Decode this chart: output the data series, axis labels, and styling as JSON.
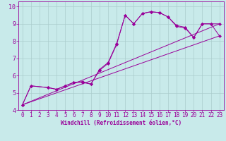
{
  "xlabel": "Windchill (Refroidissement éolien,°C)",
  "bg_color": "#c8eaea",
  "line_color": "#990099",
  "grid_color": "#aacccc",
  "marker": "D",
  "marker_size": 2.2,
  "line_width": 0.7,
  "xlim": [
    -0.5,
    23.5
  ],
  "ylim": [
    4.0,
    10.3
  ],
  "xticks": [
    0,
    1,
    2,
    3,
    4,
    5,
    6,
    7,
    8,
    9,
    10,
    11,
    12,
    13,
    14,
    15,
    16,
    17,
    18,
    19,
    20,
    21,
    22,
    23
  ],
  "yticks": [
    4,
    5,
    6,
    7,
    8,
    9,
    10
  ],
  "line1_x": [
    0,
    1,
    3,
    4,
    5,
    6,
    7,
    8,
    9,
    10,
    11,
    12,
    13,
    14,
    15,
    16,
    17,
    18,
    19,
    20,
    21,
    22,
    23
  ],
  "line1_y": [
    4.3,
    5.4,
    5.3,
    5.2,
    5.4,
    5.6,
    5.6,
    5.5,
    6.3,
    6.7,
    7.8,
    9.5,
    9.0,
    9.6,
    9.7,
    9.65,
    9.4,
    8.9,
    8.8,
    8.2,
    9.0,
    9.0,
    9.0
  ],
  "line2_x": [
    0,
    1,
    3,
    4,
    5,
    6,
    7,
    8,
    9,
    10,
    11,
    12,
    13,
    14,
    15,
    16,
    17,
    18,
    19,
    20,
    21,
    22,
    23
  ],
  "line2_y": [
    4.3,
    5.4,
    5.3,
    5.2,
    5.4,
    5.6,
    5.65,
    5.5,
    6.35,
    6.75,
    7.85,
    9.5,
    9.0,
    9.6,
    9.7,
    9.65,
    9.4,
    8.85,
    8.75,
    8.2,
    9.0,
    9.0,
    8.3
  ],
  "line3_x": [
    0,
    23
  ],
  "line3_y": [
    4.3,
    8.3
  ],
  "line4_x": [
    0,
    23
  ],
  "line4_y": [
    4.3,
    9.0
  ],
  "xlabel_fontsize": 5.5,
  "tick_fontsize": 5.5
}
